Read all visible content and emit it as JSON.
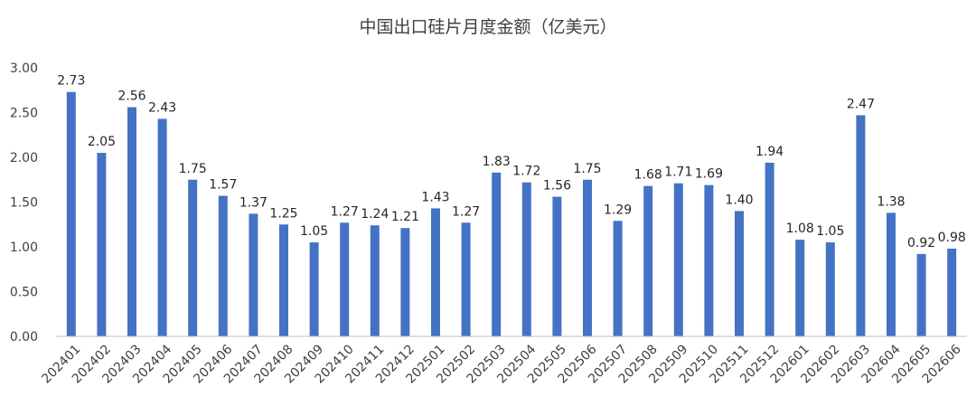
{
  "chart_data": {
    "type": "bar",
    "title": "中国出口硅片月度金额（亿美元）",
    "xlabel": "",
    "ylabel": "",
    "ylim": [
      0,
      3
    ],
    "yticks": [
      0,
      0.5,
      1.0,
      1.5,
      2.0,
      2.5,
      3.0
    ],
    "ytick_labels": [
      "0.00",
      "0.50",
      "1.00",
      "1.50",
      "2.00",
      "2.50",
      "3.00"
    ],
    "grid": false,
    "legend": "none",
    "bar_color": "#4472c4",
    "categories": [
      "202401",
      "202402",
      "202403",
      "202404",
      "202405",
      "202406",
      "202407",
      "202408",
      "202409",
      "202410",
      "202411",
      "202412",
      "202501",
      "202502",
      "202503",
      "202504",
      "202505",
      "202506",
      "202507",
      "202508",
      "202509",
      "202510",
      "202511",
      "202512",
      "202601",
      "202602",
      "202603",
      "202604",
      "202605",
      "202606"
    ],
    "values": [
      2.73,
      2.05,
      2.56,
      2.43,
      1.75,
      1.57,
      1.37,
      1.25,
      1.05,
      1.27,
      1.24,
      1.21,
      1.43,
      1.27,
      1.83,
      1.72,
      1.56,
      1.75,
      1.29,
      1.68,
      1.71,
      1.69,
      1.4,
      1.94,
      1.08,
      1.05,
      2.47,
      1.38,
      0.92,
      0.98
    ],
    "data_labels": [
      "2.73",
      "2.05",
      "2.56",
      "2.43",
      "1.75",
      "1.57",
      "1.37",
      "1.25",
      "1.05",
      "1.27",
      "1.24",
      "1.21",
      "1.43",
      "1.27",
      "1.83",
      "1.72",
      "1.56",
      "1.75",
      "1.29",
      "1.68",
      "1.71",
      "1.69",
      "1.40",
      "1.94",
      "1.08",
      "1.05",
      "2.47",
      "1.38",
      "0.92",
      "0.98"
    ]
  }
}
